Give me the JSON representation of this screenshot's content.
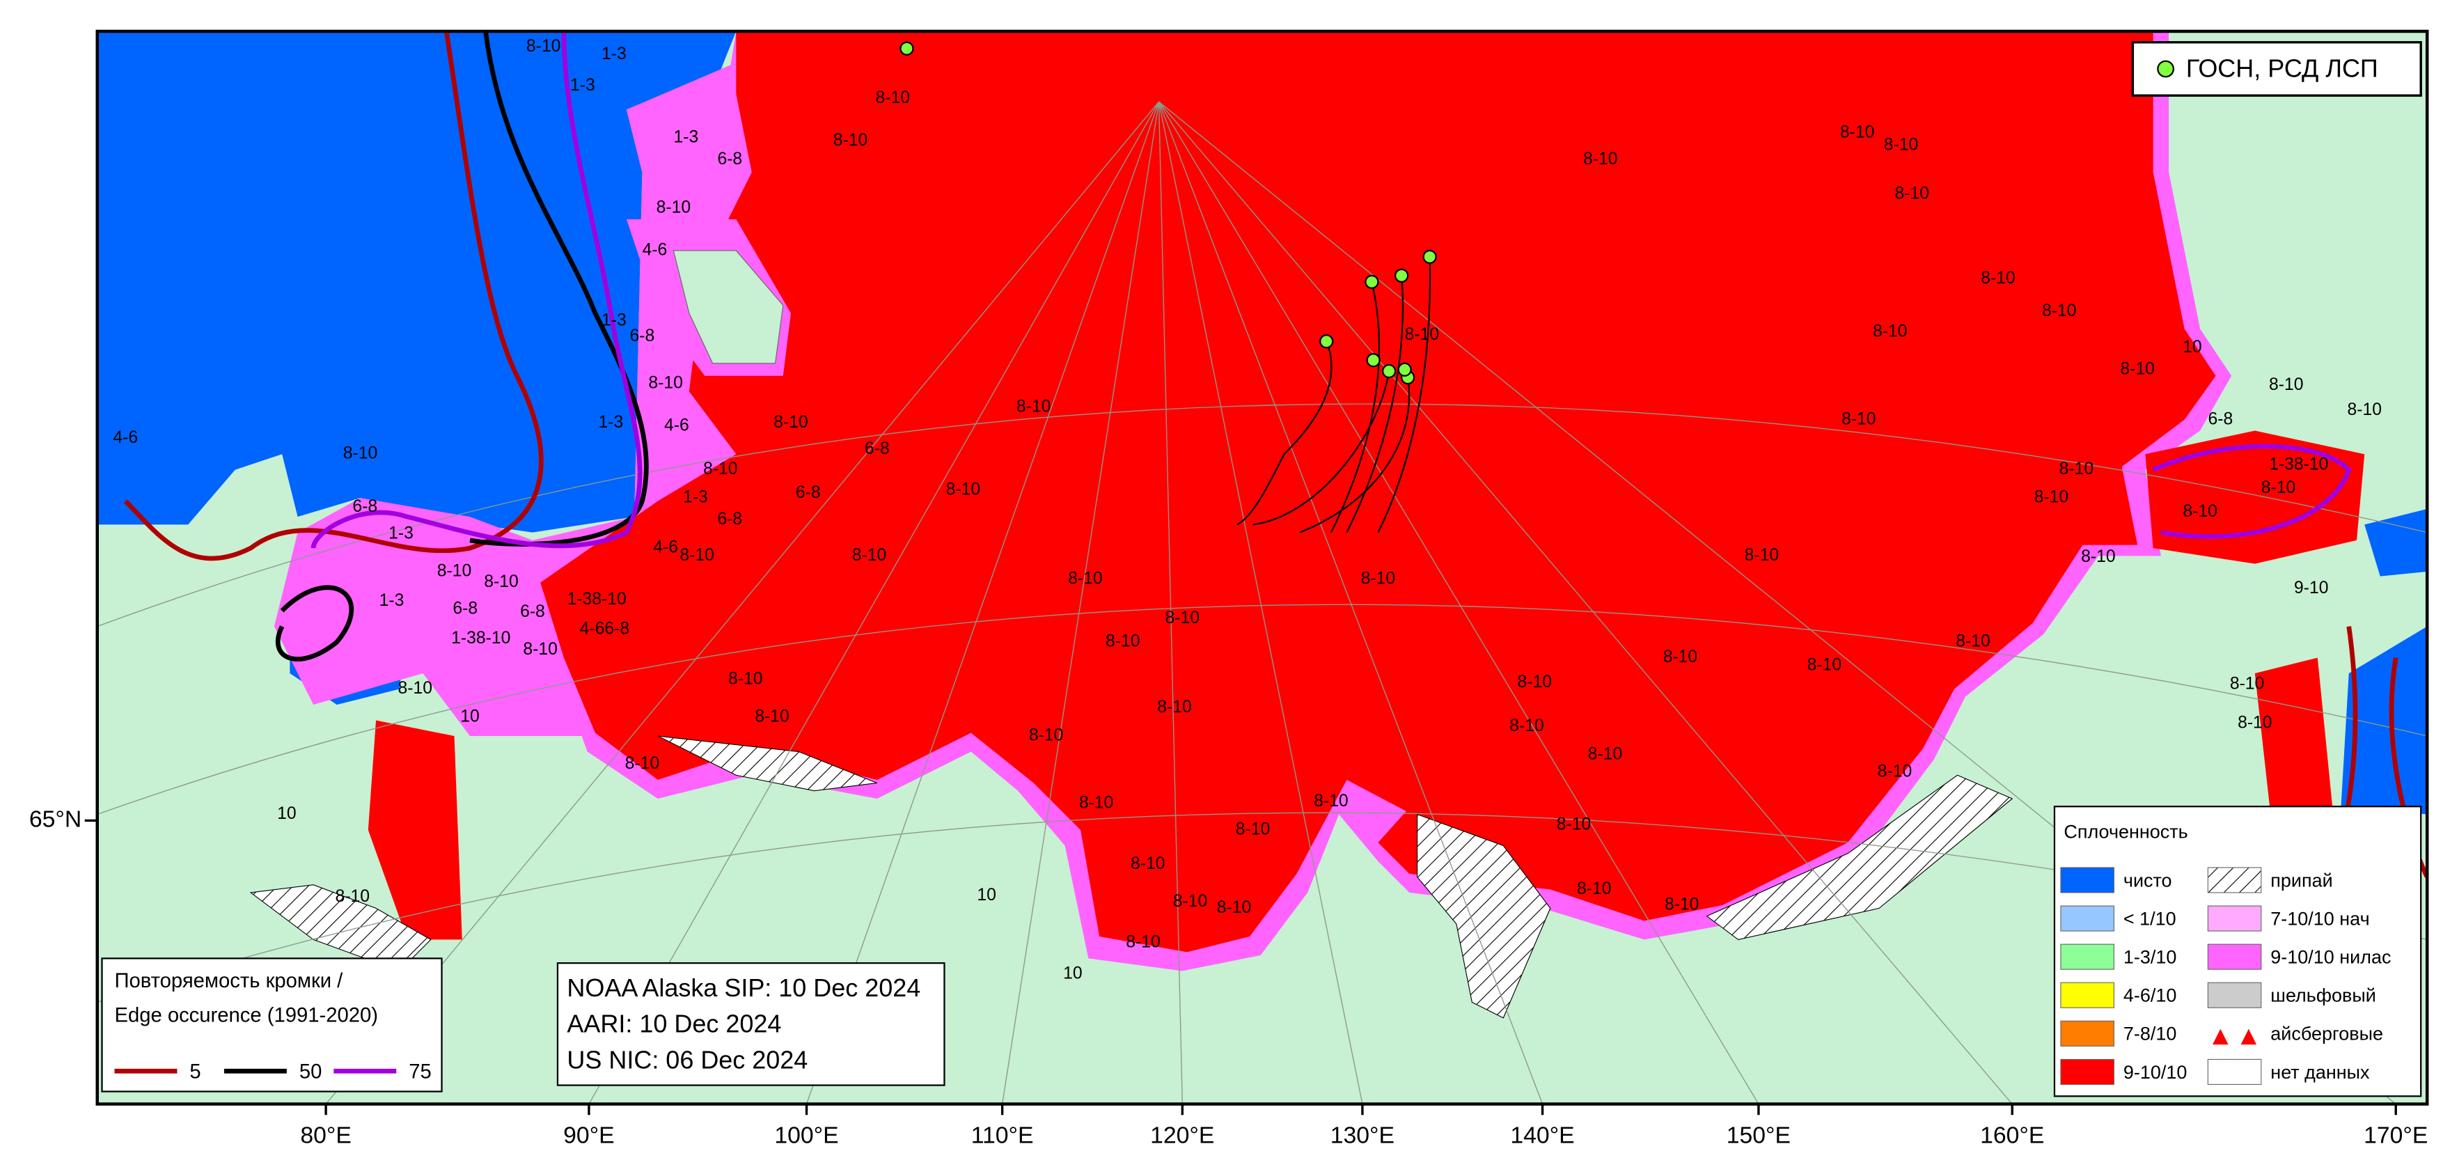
{
  "axes": {
    "x_labels": [
      "80°E",
      "90°E",
      "100°E",
      "110°E",
      "120°E",
      "130°E",
      "140°E",
      "150°E",
      "160°E",
      "170°E"
    ],
    "y_labels": [
      "65°N"
    ]
  },
  "points_legend": "ГОСН, РСД ЛСП",
  "edge_legend": {
    "title": [
      "Повторяемость кромки /",
      "Edge occurence (1991-2020)"
    ],
    "items": [
      {
        "label": "5",
        "color": "#b00000"
      },
      {
        "label": "50",
        "color": "#000000"
      },
      {
        "label": "75",
        "color": "#a000e0"
      }
    ]
  },
  "info_box": [
    "NOAA Alaska SIP: 10 Dec 2024",
    "AARI: 10 Dec 2024",
    "US NIC: 06 Dec 2024"
  ],
  "concentration_legend": {
    "title": "Сплоченность",
    "items": [
      {
        "label": "чисто",
        "color": "#0064ff"
      },
      {
        "label": "< 1/10",
        "color": "#96c8ff"
      },
      {
        "label": "1-3/10",
        "color": "#8cff96"
      },
      {
        "label": "4-6/10",
        "color": "#ffff00"
      },
      {
        "label": "7-8/10",
        "color": "#ff7d00"
      },
      {
        "label": "9-10/10",
        "color": "#ff0000"
      },
      {
        "label": "припай",
        "color": "hatch"
      },
      {
        "label": "7-10/10 нач",
        "color": "#ffaaff"
      },
      {
        "label": "9-10/10 нилас",
        "color": "#ff64ff"
      },
      {
        "label": "шельфовый",
        "color": "#cccccc"
      },
      {
        "label": "айсберговые",
        "color": "iceberg"
      },
      {
        "label": "нет данных",
        "color": "#ffffff"
      }
    ]
  },
  "ice_labels": [
    "8-10",
    "8-10",
    "8-10",
    "8-10",
    "8-10",
    "8-10",
    "8-10",
    "8-10",
    "8-10",
    "8-10",
    "8-10",
    "8-10",
    "8-10",
    "6-8",
    "8-10",
    "8-10",
    "8-10",
    "8-10",
    "8-10",
    "8-10",
    "8-10",
    "8-10",
    "8-10",
    "8-10",
    "8-10",
    "8-10",
    "8-10",
    "8-10",
    "8-10",
    "8-10",
    "8-10",
    "8-10",
    "8-10",
    "8-10",
    "8-10",
    "8-10",
    "8-10",
    "10",
    "8-10",
    "8-10",
    "8-10",
    "8-10",
    "8-10",
    "8-10",
    "8-10",
    "8-10",
    "8-10",
    "8-10",
    "8-10",
    "8-10",
    "8-10",
    "8-10",
    "8-10",
    "8-10",
    "8-10",
    "8-10",
    "8-10",
    "8-10",
    "8-10",
    "8-10",
    "8-10",
    "8-10",
    "8-10",
    "1-3",
    "1-3",
    "1-3",
    "1-3",
    "1-3",
    "1-3",
    "1-3",
    "1-3",
    "6-8",
    "6-8",
    "6-8",
    "6-8",
    "6-8",
    "6-8",
    "6-8",
    "6-8",
    "4-6",
    "4-6",
    "4-6",
    "4-6",
    "1-38-10",
    "1-38-10",
    "4-66-8",
    "1-38-10",
    "8-10",
    "10",
    "10",
    "10",
    "10",
    "9-10",
    "8-10"
  ]
}
